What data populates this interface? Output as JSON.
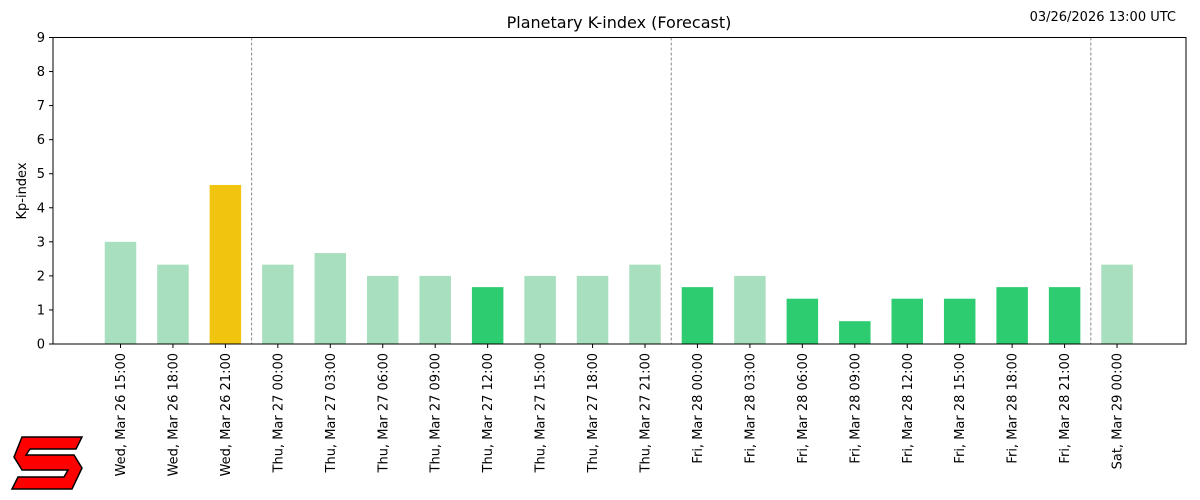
{
  "header": {
    "timestamp": "03/26/2026 13:00 UTC"
  },
  "logo": {
    "name": "red-s-logo",
    "color": "#ff0000",
    "outline": "#000000"
  },
  "colors": {
    "light_green": "#a8dfbe",
    "green": "#2ecc71",
    "yellow": "#f1c40f"
  },
  "chart_data": {
    "type": "bar",
    "title": "Planetary K-index (Forecast)",
    "xlabel": "",
    "ylabel": "Kp-index",
    "ylim": [
      0,
      9
    ],
    "yticks": [
      0,
      1,
      2,
      3,
      4,
      5,
      6,
      7,
      8,
      9
    ],
    "grid": false,
    "day_separators_after_index": [
      2,
      10,
      18
    ],
    "categories": [
      "Wed, Mar 26 15:00",
      "Wed, Mar 26 18:00",
      "Wed, Mar 26 21:00",
      "Thu, Mar 27 00:00",
      "Thu, Mar 27 03:00",
      "Thu, Mar 27 06:00",
      "Thu, Mar 27 09:00",
      "Thu, Mar 27 12:00",
      "Thu, Mar 27 15:00",
      "Thu, Mar 27 18:00",
      "Thu, Mar 27 21:00",
      "Fri, Mar 28 00:00",
      "Fri, Mar 28 03:00",
      "Fri, Mar 28 06:00",
      "Fri, Mar 28 09:00",
      "Fri, Mar 28 12:00",
      "Fri, Mar 28 15:00",
      "Fri, Mar 28 18:00",
      "Fri, Mar 28 21:00",
      "Sat, Mar 29 00:00"
    ],
    "values": [
      3.0,
      2.33,
      4.67,
      2.33,
      2.67,
      2.0,
      2.0,
      1.67,
      2.0,
      2.0,
      2.33,
      1.67,
      2.0,
      1.33,
      0.67,
      1.33,
      1.33,
      1.67,
      1.67,
      2.33
    ],
    "bar_colors": [
      "#a8dfbe",
      "#a8dfbe",
      "#f1c40f",
      "#a8dfbe",
      "#a8dfbe",
      "#a8dfbe",
      "#a8dfbe",
      "#2ecc71",
      "#a8dfbe",
      "#a8dfbe",
      "#a8dfbe",
      "#2ecc71",
      "#a8dfbe",
      "#2ecc71",
      "#2ecc71",
      "#2ecc71",
      "#2ecc71",
      "#2ecc71",
      "#2ecc71",
      "#a8dfbe"
    ]
  }
}
